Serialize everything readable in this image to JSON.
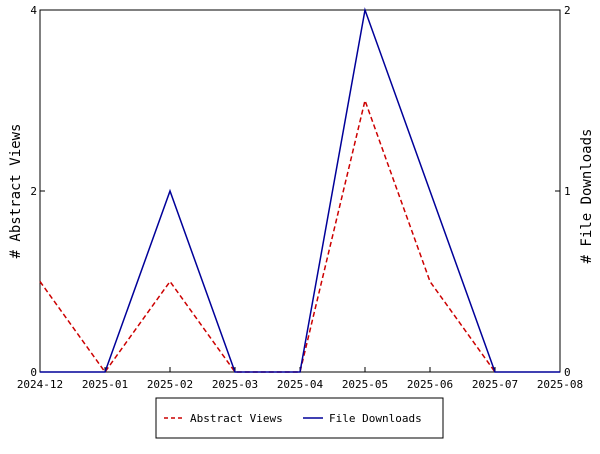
{
  "chart_data": {
    "type": "line",
    "x": [
      "2024-12",
      "2025-01",
      "2025-02",
      "2025-03",
      "2025-04",
      "2025-05",
      "2025-06",
      "2025-07",
      "2025-08"
    ],
    "series": [
      {
        "name": "Abstract Views",
        "axis": "left",
        "color": "#cc0000",
        "line_style": "dashed",
        "values": [
          1,
          0,
          1,
          0,
          0,
          3,
          1,
          0,
          null
        ]
      },
      {
        "name": "File Downloads",
        "axis": "right",
        "color": "#000099",
        "line_style": "solid",
        "values": [
          0,
          0,
          1,
          0,
          0,
          2,
          1,
          0,
          0
        ]
      }
    ],
    "ylabel_left": "# Abstract Views",
    "ylabel_right": "# File Downloads",
    "ylim_left": [
      0,
      4
    ],
    "ylim_right": [
      0,
      2
    ],
    "yticks_left": [
      "0",
      "2",
      "4"
    ],
    "yticks_right": [
      "0",
      "1",
      "2"
    ],
    "grid": false,
    "legend_placement": "bottom-center"
  }
}
